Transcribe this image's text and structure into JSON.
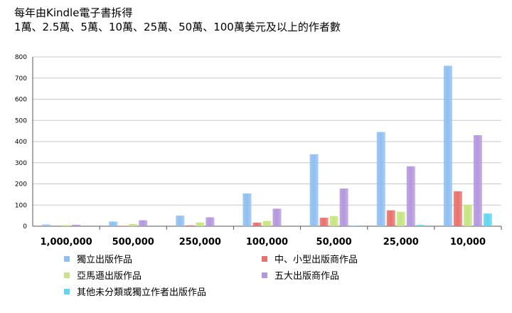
{
  "chart_data": {
    "type": "bar",
    "title_line1": "每年由Kindle電子書拆得",
    "title_line2": "1萬、2.5萬、5萬、10萬、25萬、50萬、100萬美元及以上的作者數",
    "xlabel": "",
    "ylabel": "",
    "ylim": [
      0,
      800
    ],
    "yticks": [
      0,
      100,
      200,
      300,
      400,
      500,
      600,
      700,
      800
    ],
    "grid": true,
    "legend_position": "bottom",
    "categories": [
      "1,000,000",
      "500,000",
      "250,000",
      "100,000",
      "50,000",
      "25,000",
      "10,000"
    ],
    "series": [
      {
        "name": "獨立出版作品",
        "color": "#8fbff2",
        "values": [
          8,
          22,
          50,
          155,
          340,
          445,
          758
        ]
      },
      {
        "name": "中、小型出版商作品",
        "color": "#e8716c",
        "values": [
          0,
          2,
          4,
          17,
          40,
          75,
          165
        ]
      },
      {
        "name": "亞馬遜出版作品",
        "color": "#c6e481",
        "values": [
          5,
          10,
          18,
          25,
          48,
          68,
          100
        ]
      },
      {
        "name": "五大出版商作品",
        "color": "#b497dd",
        "values": [
          7,
          28,
          42,
          83,
          178,
          283,
          430
        ]
      },
      {
        "name": "其他未分類或獨立作者出版作品",
        "color": "#62d4f0",
        "values": [
          0,
          0,
          0,
          0,
          3,
          6,
          60
        ]
      }
    ]
  }
}
